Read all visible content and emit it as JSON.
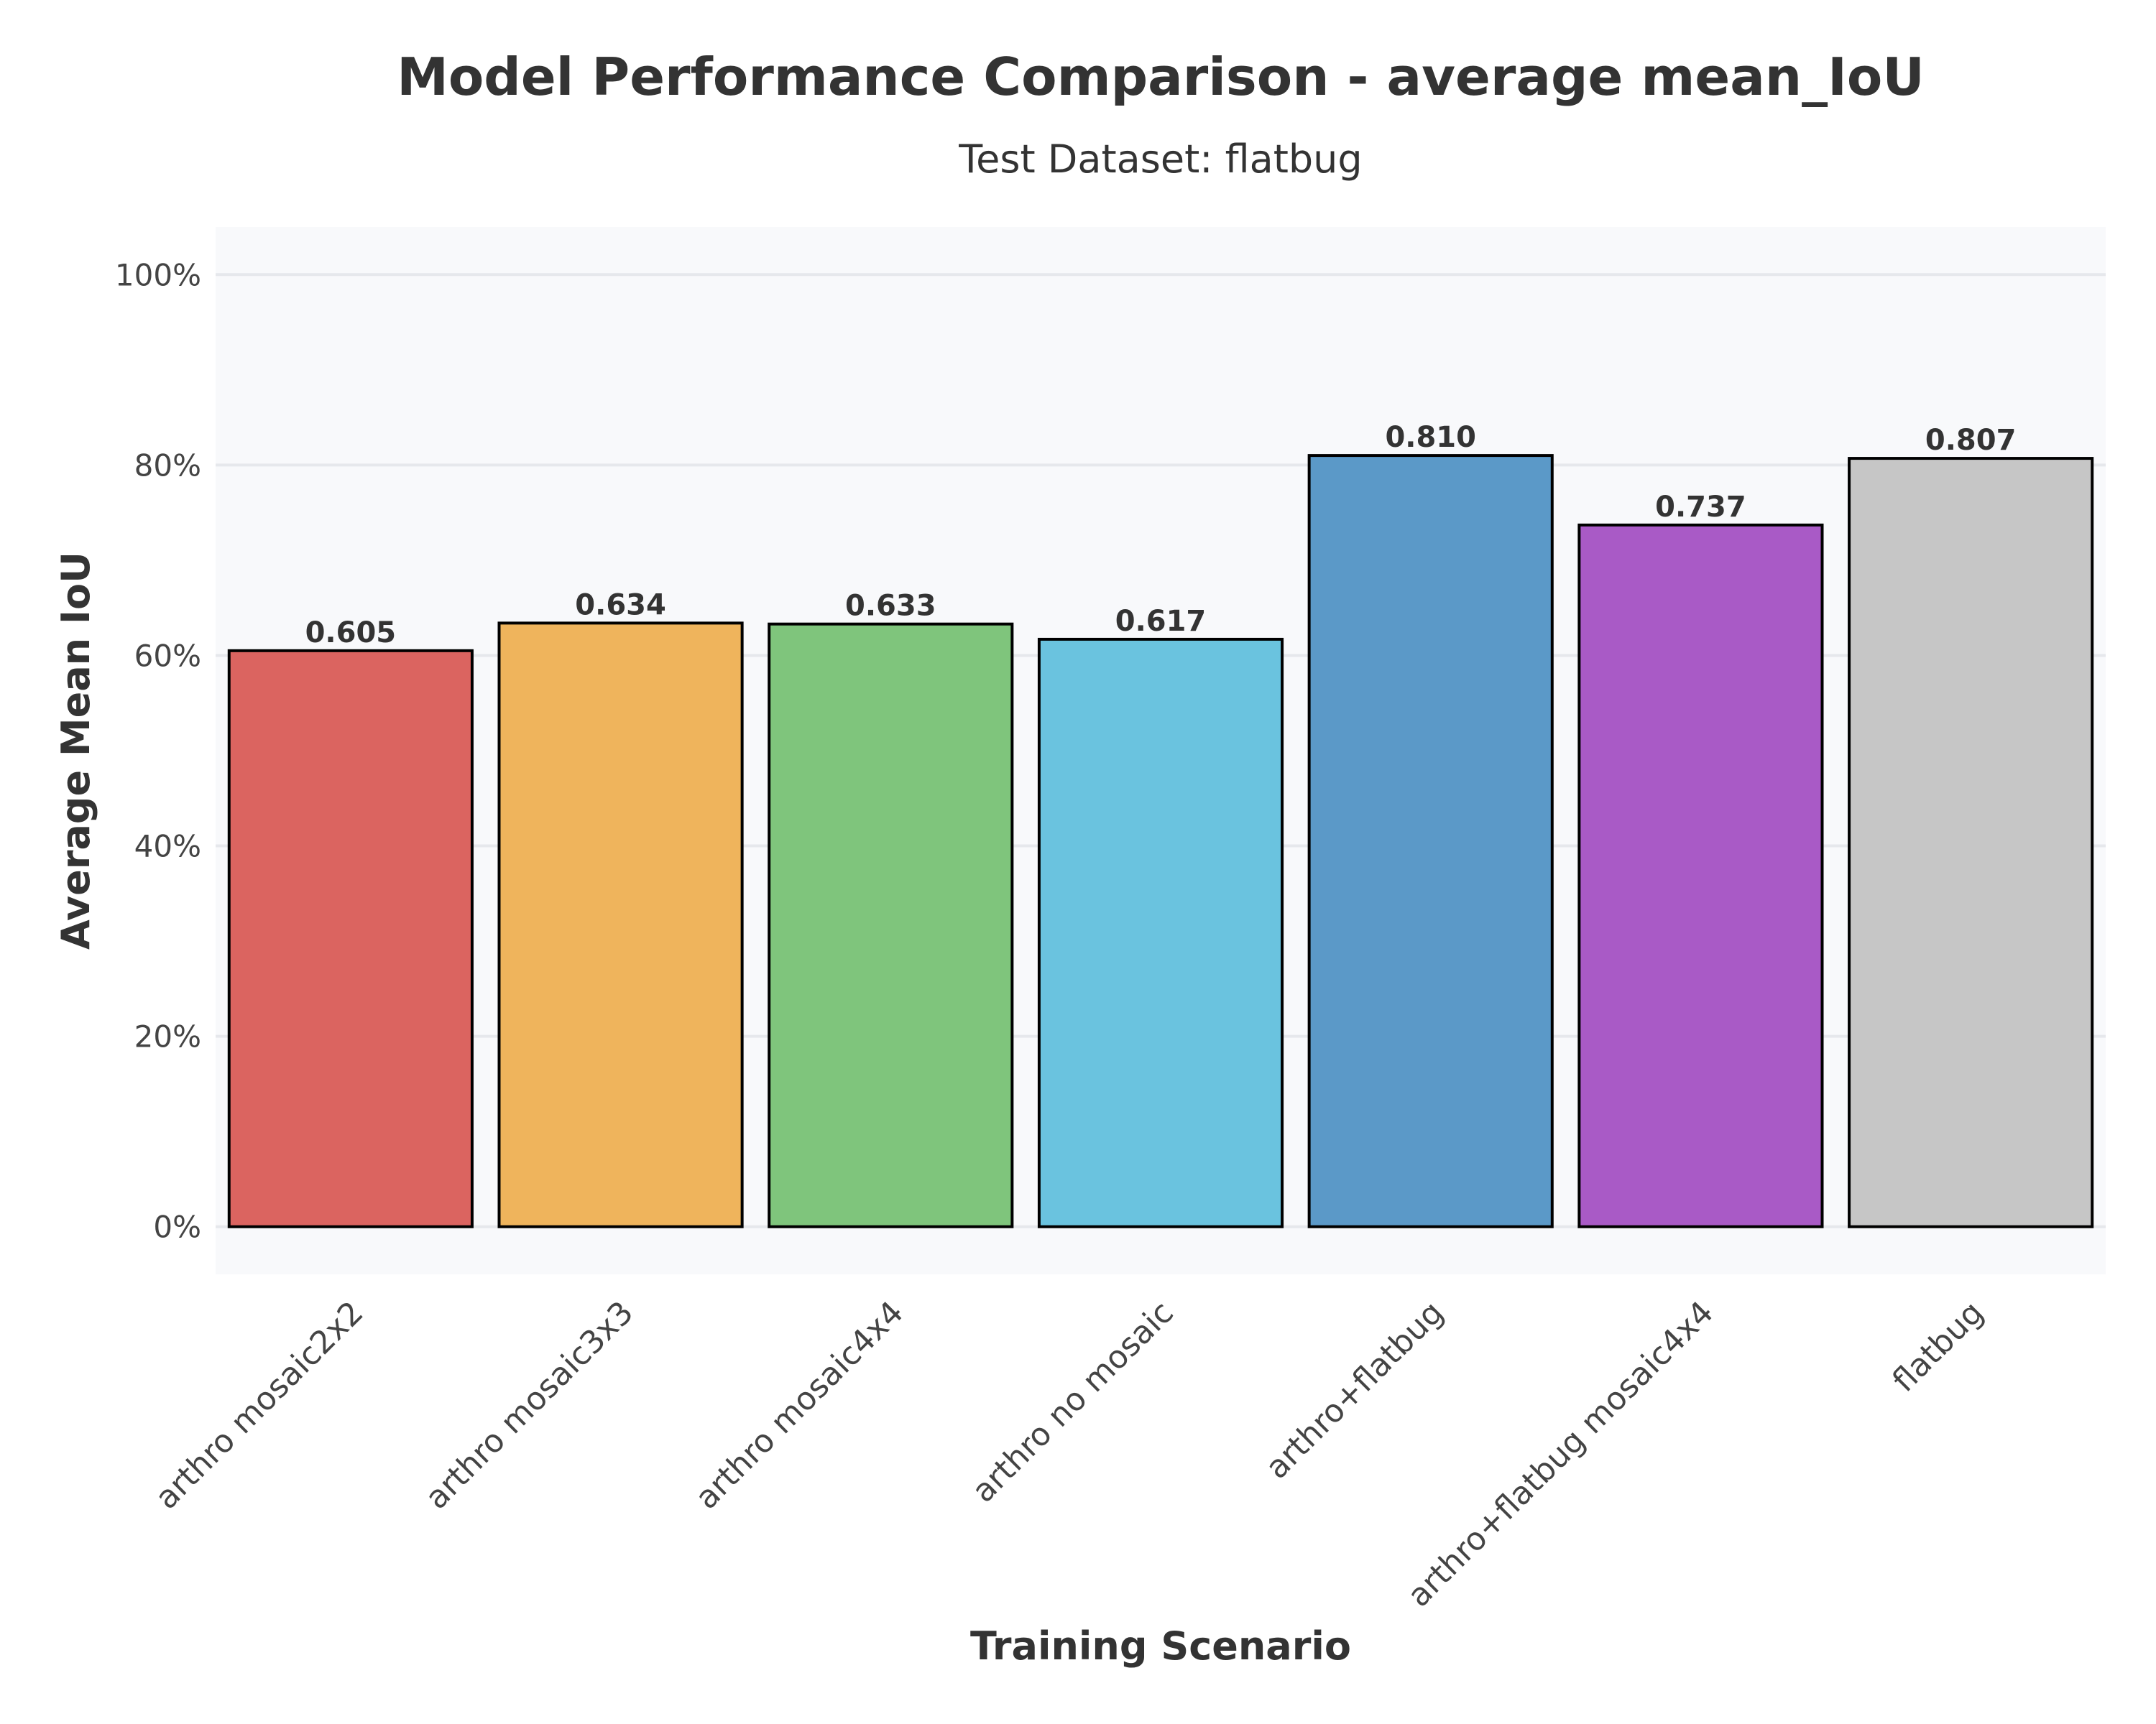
{
  "chart_data": {
    "type": "bar",
    "title": "Model Performance Comparison - average mean_IoU",
    "subtitle": "Test Dataset: flatbug",
    "xlabel": "Training Scenario",
    "ylabel": "Average Mean IoU",
    "ylim": [
      -0.05,
      1.05
    ],
    "yticks": [
      0,
      0.2,
      0.4,
      0.6,
      0.8,
      1.0
    ],
    "ytick_labels": [
      "0%",
      "20%",
      "40%",
      "60%",
      "80%",
      "100%"
    ],
    "grid": true,
    "legend": "none",
    "categories": [
      "arthro mosaic2x2",
      "arthro mosaic3x3",
      "arthro mosaic4x4",
      "arthro no mosaic",
      "arthro+flatbug",
      "arthro+flatbug mosaic4x4",
      "flatbug"
    ],
    "values": [
      0.605,
      0.634,
      0.633,
      0.617,
      0.81,
      0.737,
      0.807
    ],
    "value_labels": [
      "0.605",
      "0.634",
      "0.633",
      "0.617",
      "0.810",
      "0.737",
      "0.807"
    ],
    "colors": [
      "#db6460",
      "#efb45c",
      "#7fc57c",
      "#6ac3df",
      "#5b99c8",
      "#a95ac6",
      "#c6c6c6"
    ],
    "plot_background": "#f8f9fb",
    "bar_edge_color": "#000000"
  }
}
